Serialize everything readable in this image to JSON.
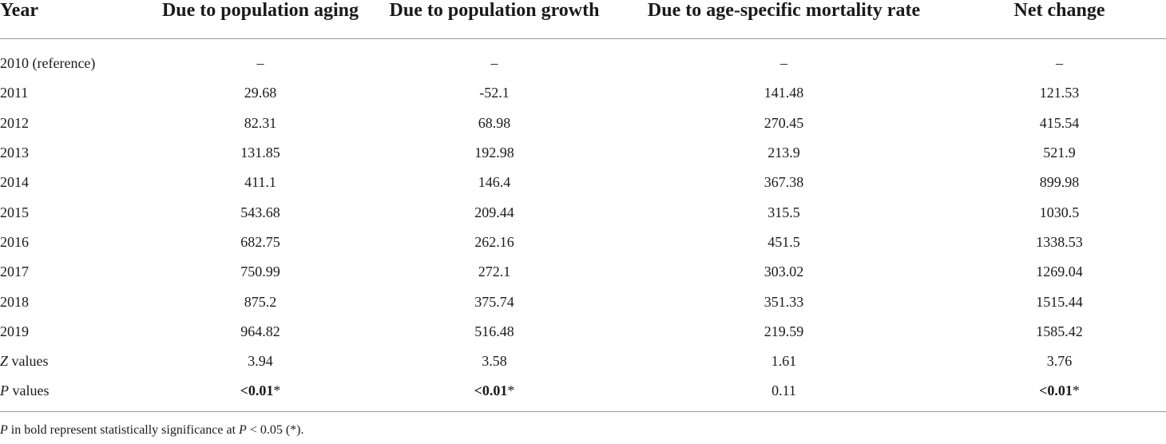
{
  "table": {
    "headers": [
      "Year",
      "Due to population aging",
      "Due to population growth",
      "Due to age-specific mortality rate",
      "Net change"
    ],
    "rows": [
      {
        "year": "2010 (reference)",
        "aging": "–",
        "growth": "–",
        "mortality": "–",
        "net": "–"
      },
      {
        "year": "2011",
        "aging": "29.68",
        "growth": "-52.1",
        "mortality": "141.48",
        "net": "121.53"
      },
      {
        "year": "2012",
        "aging": "82.31",
        "growth": "68.98",
        "mortality": "270.45",
        "net": "415.54"
      },
      {
        "year": "2013",
        "aging": "131.85",
        "growth": "192.98",
        "mortality": "213.9",
        "net": "521.9"
      },
      {
        "year": "2014",
        "aging": "411.1",
        "growth": "146.4",
        "mortality": "367.38",
        "net": "899.98"
      },
      {
        "year": "2015",
        "aging": "543.68",
        "growth": "209.44",
        "mortality": "315.5",
        "net": "1030.5"
      },
      {
        "year": "2016",
        "aging": "682.75",
        "growth": "262.16",
        "mortality": "451.5",
        "net": "1338.53"
      },
      {
        "year": "2017",
        "aging": "750.99",
        "growth": "272.1",
        "mortality": "303.02",
        "net": "1269.04"
      },
      {
        "year": "2018",
        "aging": "875.2",
        "growth": "375.74",
        "mortality": "351.33",
        "net": "1515.44"
      },
      {
        "year": "2019",
        "aging": "964.82",
        "growth": "516.48",
        "mortality": "219.59",
        "net": "1585.42"
      }
    ],
    "z_row": {
      "label_symbol": "Z",
      "label_rest": " values",
      "aging": "3.94",
      "growth": "3.58",
      "mortality": "1.61",
      "net": "3.76"
    },
    "p_row": {
      "label_symbol": "P",
      "label_rest": " values",
      "aging": "<0.01",
      "aging_mark": "*",
      "growth": "<0.01",
      "growth_mark": "*",
      "mortality": "0.11",
      "net": "<0.01",
      "net_mark": "*"
    }
  },
  "footnote": {
    "p1": "P",
    "t1": " in bold represent statistically significance at ",
    "p2": "P",
    "t2": " < 0.05 (*)."
  }
}
